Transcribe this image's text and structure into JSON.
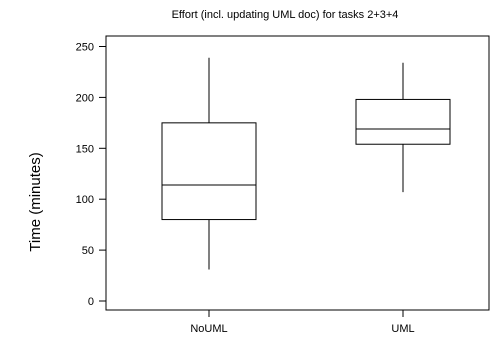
{
  "chart_data": {
    "type": "boxplot",
    "title": "Effort (incl. updating UML doc) for tasks 2+3+4",
    "xlabel": "",
    "ylabel": "Time (minutes)",
    "ylim": [
      0,
      250
    ],
    "yticks": [
      0,
      50,
      100,
      150,
      200,
      250
    ],
    "categories": [
      "NoUML",
      "UML"
    ],
    "boxes": [
      {
        "category": "NoUML",
        "min": 31,
        "q1": 80,
        "median": 114,
        "q3": 175,
        "max": 239
      },
      {
        "category": "UML",
        "min": 107,
        "q1": 154,
        "median": 169,
        "q3": 198,
        "max": 234
      }
    ],
    "grid": false,
    "legend": "none"
  }
}
